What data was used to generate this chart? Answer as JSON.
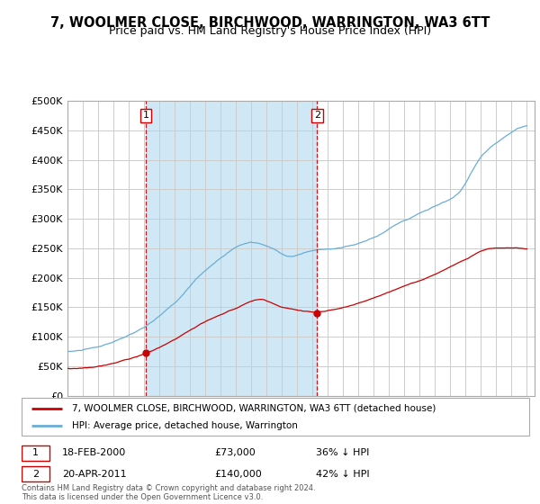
{
  "title": "7, WOOLMER CLOSE, BIRCHWOOD, WARRINGTON, WA3 6TT",
  "subtitle": "Price paid vs. HM Land Registry's House Price Index (HPI)",
  "ylim": [
    0,
    500000
  ],
  "xlim_start": 1995.0,
  "xlim_end": 2025.5,
  "sale1_date": 2000.12,
  "sale1_price": 73000,
  "sale2_date": 2011.3,
  "sale2_price": 140000,
  "hpi_color": "#6aaed6",
  "price_color": "#cc0000",
  "vline_color": "#cc0000",
  "shade_color": "#d0e8f5",
  "grid_color": "#cccccc",
  "legend_house": "7, WOOLMER CLOSE, BIRCHWOOD, WARRINGTON, WA3 6TT (detached house)",
  "legend_hpi": "HPI: Average price, detached house, Warrington",
  "footnote": "Contains HM Land Registry data © Crown copyright and database right 2024.\nThis data is licensed under the Open Government Licence v3.0.",
  "title_fontsize": 11,
  "subtitle_fontsize": 9
}
